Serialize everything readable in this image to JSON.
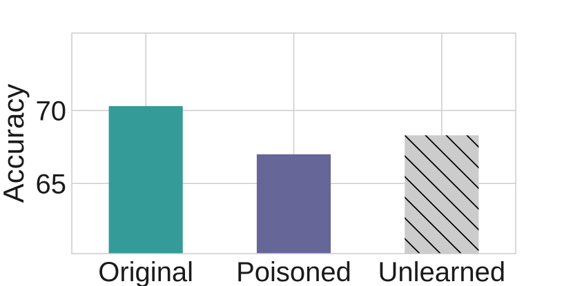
{
  "chart_data": {
    "type": "bar",
    "title": "",
    "xlabel": "",
    "ylabel": "Accuracy",
    "categories": [
      "Original",
      "Poisoned",
      "Unlearned"
    ],
    "values": [
      70.3,
      67.0,
      68.3
    ],
    "ylim": [
      60.2,
      75.3
    ],
    "yticks": [
      65,
      70
    ],
    "ytick_labels": [
      "65",
      "70"
    ],
    "grid": true,
    "legend": "none",
    "bar_colors": [
      "#349b98",
      "#666699",
      "#cccccc"
    ],
    "bar_hatch": [
      "none",
      "none",
      "diagonal"
    ]
  }
}
